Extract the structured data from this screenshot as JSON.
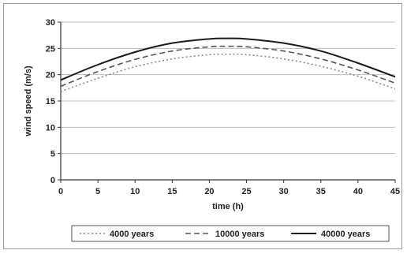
{
  "chart_data": {
    "type": "line",
    "title": "",
    "xlabel": "time (h)",
    "ylabel": "wind speed (m/s)",
    "xlim": [
      0,
      45
    ],
    "ylim": [
      0,
      30
    ],
    "xticks": [
      "0",
      "5",
      "10",
      "15",
      "20",
      "25",
      "30",
      "35",
      "40",
      "45"
    ],
    "yticks": [
      "0",
      "5",
      "10",
      "15",
      "20",
      "25",
      "30"
    ],
    "grid": "horizontal",
    "legend_position": "bottom",
    "x": [
      0,
      5,
      10,
      15,
      20,
      22.5,
      25,
      30,
      35,
      40,
      45
    ],
    "series": [
      {
        "name": "4000 years",
        "style": "dotted",
        "color": "#8a8a8a",
        "values": [
          16.8,
          19.3,
          21.5,
          23.0,
          23.8,
          23.9,
          23.8,
          23.0,
          21.6,
          19.7,
          17.3
        ]
      },
      {
        "name": "10000 years",
        "style": "dashed",
        "color": "#555555",
        "values": [
          17.8,
          20.6,
          22.9,
          24.5,
          25.3,
          25.4,
          25.3,
          24.5,
          23.0,
          20.9,
          18.4
        ]
      },
      {
        "name": "40000 years",
        "style": "solid",
        "color": "#1a1a1a",
        "values": [
          19.0,
          21.9,
          24.3,
          26.0,
          26.8,
          26.9,
          26.8,
          26.0,
          24.5,
          22.2,
          19.6
        ]
      }
    ]
  }
}
